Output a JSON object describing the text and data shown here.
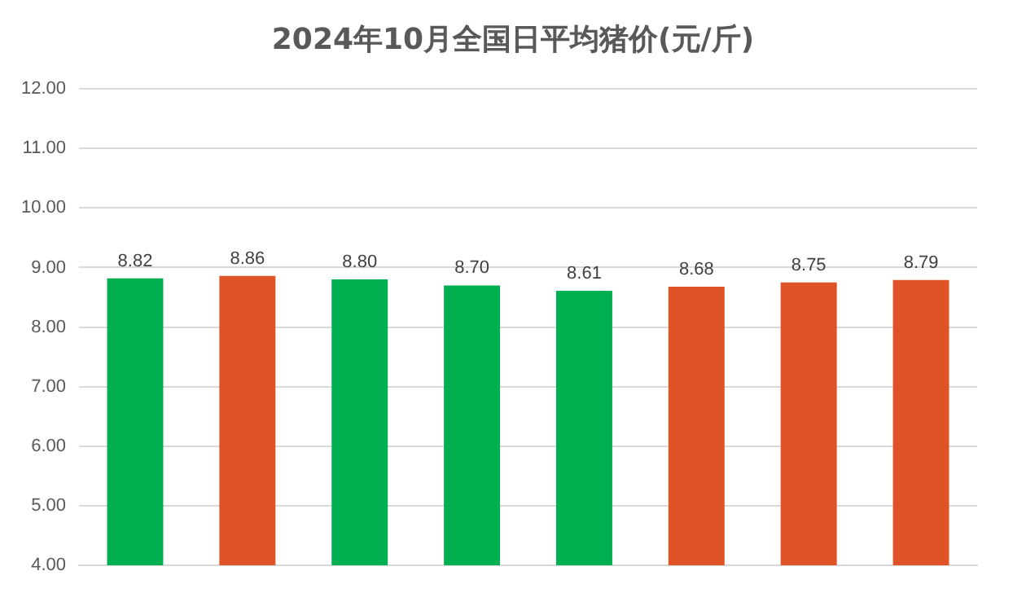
{
  "chart_data": {
    "type": "bar",
    "title": "2024年10月全国日平均猪价(元/斤)",
    "categories": [
      null,
      null,
      null,
      null,
      null,
      null,
      null,
      null
    ],
    "values": [
      8.82,
      8.86,
      8.8,
      8.7,
      8.61,
      8.68,
      8.75,
      8.79
    ],
    "value_labels": [
      "8.82",
      "8.86",
      "8.80",
      "8.70",
      "8.61",
      "8.68",
      "8.75",
      "8.79"
    ],
    "colors": [
      "#00b050",
      "#e05327",
      "#00b050",
      "#00b050",
      "#00b050",
      "#e05327",
      "#e05327",
      "#e05327"
    ],
    "ylim": [
      4,
      12
    ],
    "yticks": [
      {
        "value": 4,
        "label": "4.00"
      },
      {
        "value": 5,
        "label": "5.00"
      },
      {
        "value": 6,
        "label": "6.00"
      },
      {
        "value": 7,
        "label": "7.00"
      },
      {
        "value": 8,
        "label": "8.00"
      },
      {
        "value": 9,
        "label": "9.00"
      },
      {
        "value": 10,
        "label": "10.00"
      },
      {
        "value": 11,
        "label": "11.00"
      },
      {
        "value": 12,
        "label": "12.00"
      }
    ],
    "grid": "y",
    "legend": false
  }
}
